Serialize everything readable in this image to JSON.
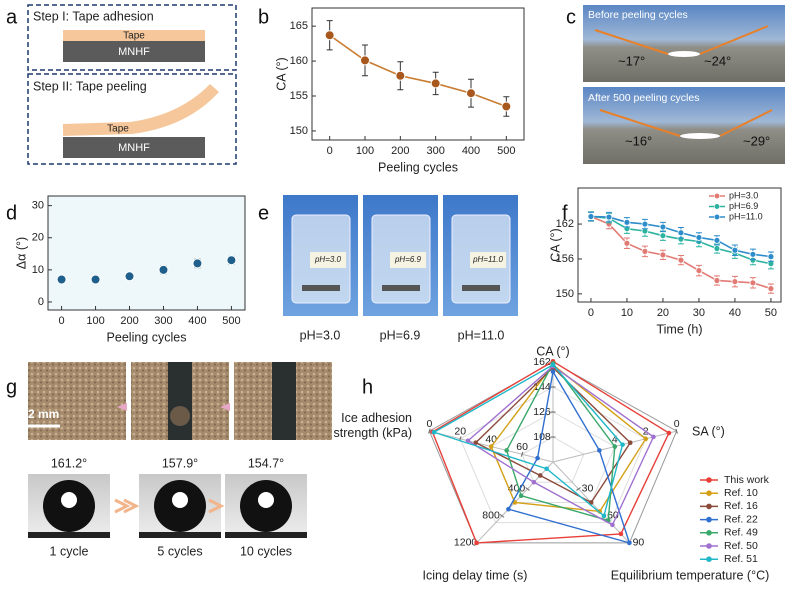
{
  "panel_labels": [
    "a",
    "b",
    "c",
    "d",
    "e",
    "f",
    "g",
    "h"
  ],
  "panel_a": {
    "step1": "Step I: Tape adhesion",
    "tape1": "Tape",
    "substrate1": "MNHF",
    "step2": "Step II: Tape peeling",
    "tape2": "Tape",
    "substrate2": "MNHF"
  },
  "panel_c": {
    "top": {
      "caption": "Before peeling cycles",
      "left_angle": "~17°",
      "right_angle": "~24°"
    },
    "bottom": {
      "caption": "After 500 peeling cycles",
      "left_angle": "~16°",
      "right_angle": "~29°"
    }
  },
  "panel_e": {
    "labels": [
      "pH=3.0",
      "pH=6.9",
      "pH=11.0"
    ]
  },
  "panel_g": {
    "scale_bar": "2 mm",
    "contact_angles": [
      "161.2°",
      "157.9°",
      "154.7°"
    ],
    "cycles": [
      "1 cycle",
      "5 cycles",
      "10 cycles"
    ]
  },
  "chart_data": [
    {
      "type": "line",
      "xlabel": "Peeling cycles",
      "ylabel": "CA (°)",
      "x": [
        0,
        100,
        200,
        300,
        400,
        500
      ],
      "values": [
        163.7,
        160.1,
        157.9,
        156.8,
        155.4,
        153.5
      ],
      "errors": [
        2.1,
        2.2,
        2.0,
        1.6,
        2.0,
        1.4
      ],
      "color": "#c97b30",
      "marker_color": "#a8581c",
      "xlim": [
        -50,
        550
      ],
      "xticks": [
        0,
        100,
        200,
        300,
        400,
        500
      ],
      "ylim": [
        148.7,
        167.6
      ],
      "yticks": [
        150,
        155,
        160,
        165
      ]
    },
    {
      "type": "scatter",
      "xlabel": "Peeling cycles",
      "ylabel": "Δα (°)",
      "x": [
        0,
        100,
        200,
        300,
        400,
        500
      ],
      "values": [
        7,
        7,
        8,
        10,
        12,
        13
      ],
      "errors": [
        0.5,
        0.5,
        0.6,
        1.2,
        1.3,
        1.2
      ],
      "color": "#1f5f8b",
      "marker_color": "#1f5f8b",
      "background": "#eef8fb",
      "xlim": [
        -40,
        540
      ],
      "xticks": [
        0,
        100,
        200,
        300,
        400,
        500
      ],
      "ylim": [
        -2.5,
        33
      ],
      "yticks": [
        0,
        10,
        20,
        30
      ]
    },
    {
      "type": "line",
      "xlabel": "Time (h)",
      "ylabel": "CA (°)",
      "x": [
        0,
        5,
        10,
        15,
        20,
        25,
        30,
        35,
        40,
        45,
        50
      ],
      "series": [
        {
          "name": "pH=3.0",
          "color": "#e27a74",
          "values": [
            163.3,
            162.0,
            158.7,
            157.3,
            156.7,
            155.8,
            154.0,
            152.3,
            152.1,
            151.9,
            150.9
          ],
          "errors": [
            0.8,
            0.8,
            0.9,
            0.9,
            0.8,
            0.8,
            0.9,
            0.8,
            0.9,
            0.9,
            0.8
          ]
        },
        {
          "name": "pH=6.9",
          "color": "#2bb3a0",
          "values": [
            163.3,
            163.0,
            161.2,
            160.8,
            160.0,
            159.4,
            159.0,
            157.8,
            157.0,
            155.8,
            155.2
          ],
          "errors": [
            0.8,
            0.8,
            0.8,
            0.9,
            0.8,
            0.8,
            0.9,
            0.8,
            0.9,
            0.8,
            0.9
          ]
        },
        {
          "name": "pH=11.0",
          "color": "#2d8ccb",
          "values": [
            163.3,
            163.2,
            162.3,
            162.0,
            161.5,
            160.5,
            159.7,
            159.2,
            157.5,
            156.8,
            156.4
          ],
          "errors": [
            0.7,
            0.8,
            0.8,
            0.8,
            0.8,
            0.9,
            0.8,
            0.8,
            0.9,
            0.9,
            0.8
          ]
        }
      ],
      "legend": "upper right",
      "xlim": [
        -3.6,
        52.8
      ],
      "xticks": [
        0,
        10,
        20,
        30,
        40,
        50
      ],
      "ylim": [
        148.6,
        168.2
      ],
      "yticks": [
        150,
        156,
        162
      ]
    },
    {
      "type": "radar",
      "axes": [
        {
          "name": "CA (°)",
          "lim": [
            90,
            162
          ],
          "ticks": [
            108,
            126,
            144,
            162
          ]
        },
        {
          "name": "SA (°)",
          "lim": [
            8,
            0
          ],
          "ticks": [
            0,
            2,
            4
          ]
        },
        {
          "name": "Equilibrium temperature (°C)",
          "lim": [
            0,
            90
          ],
          "ticks": [
            30,
            60,
            90
          ]
        },
        {
          "name": "Icing delay time (s)",
          "lim": [
            0,
            1200
          ],
          "ticks": [
            400,
            800,
            1200
          ]
        },
        {
          "name": "Ice adhesion strength (kPa)",
          "lim": [
            80,
            0
          ],
          "ticks": [
            0,
            20,
            40,
            60
          ]
        }
      ],
      "series": [
        {
          "name": "This work",
          "color": "#e8413a",
          "values": [
            162.5,
            0.5,
            80,
            1200,
            2
          ]
        },
        {
          "name": "Ref. 10",
          "color": "#d4a017",
          "values": [
            160,
            2,
            55,
            600,
            40
          ]
        },
        {
          "name": "Ref. 16",
          "color": "#8b4a3a",
          "values": [
            158,
            3,
            45,
            200,
            30
          ]
        },
        {
          "name": "Ref. 22",
          "color": "#2f6fd0",
          "values": [
            155,
            5,
            90,
            700,
            70
          ]
        },
        {
          "name": "Ref. 49",
          "color": "#3aa86b",
          "values": [
            161,
            4,
            65,
            500,
            50
          ]
        },
        {
          "name": "Ref. 50",
          "color": "#a070d0",
          "values": [
            159,
            1.5,
            70,
            300,
            25
          ]
        },
        {
          "name": "Ref. 51",
          "color": "#20b8c8",
          "values": [
            160,
            3.5,
            60,
            100,
            3
          ]
        }
      ],
      "legend": "right"
    }
  ]
}
